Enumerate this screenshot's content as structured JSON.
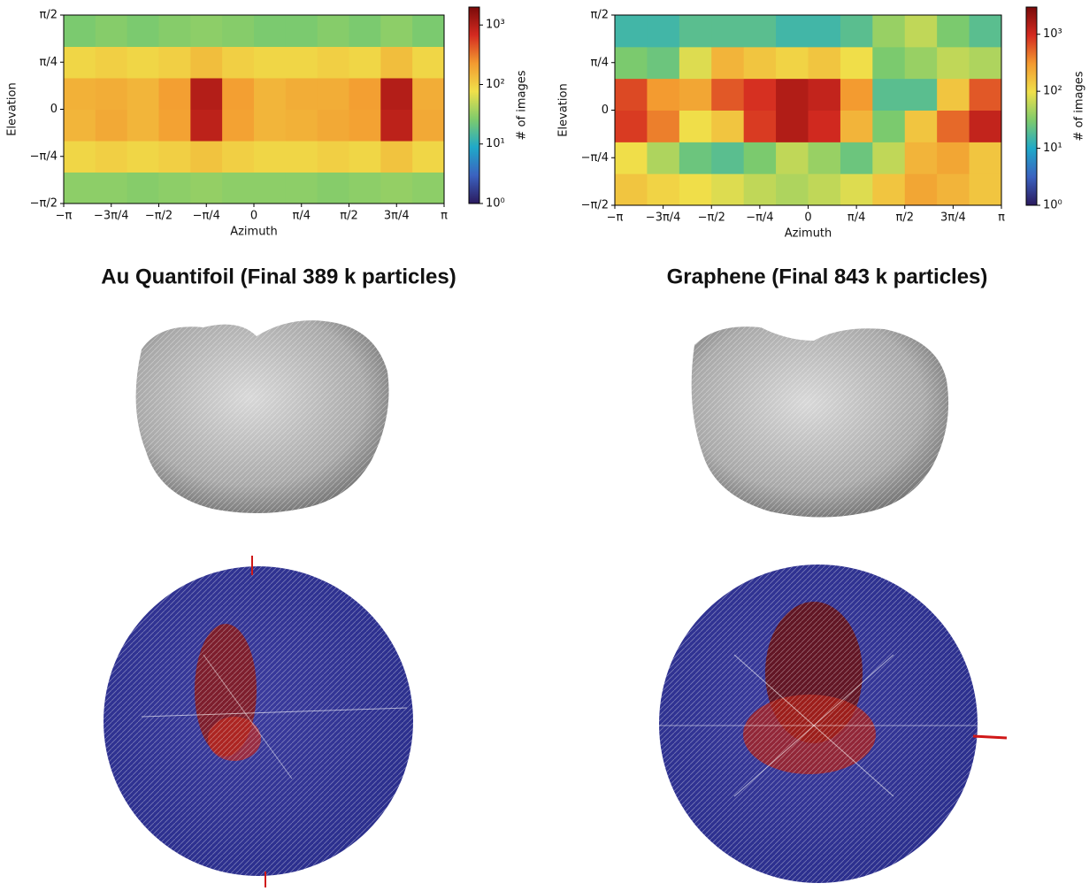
{
  "chart_data": [
    {
      "type": "heatmap",
      "xlabel": "Azimuth",
      "ylabel": "Elevation",
      "colorbar_label": "# of images",
      "xlim": [
        -3.1416,
        3.1416
      ],
      "ylim": [
        -1.5708,
        1.5708
      ],
      "xticks": [
        {
          "value": -3.1416,
          "label": "−π"
        },
        {
          "value": -2.3562,
          "label": "−3π/4"
        },
        {
          "value": -1.5708,
          "label": "−π/2"
        },
        {
          "value": -0.7854,
          "label": "−π/4"
        },
        0,
        {
          "value": 0.7854,
          "label": "π/4"
        },
        {
          "value": 1.5708,
          "label": "π/2"
        },
        {
          "value": 2.3562,
          "label": "3π/4"
        },
        {
          "value": 3.1416,
          "label": "π"
        }
      ],
      "yticks": [
        {
          "value": -1.5708,
          "label": "−π/2"
        },
        {
          "value": -0.7854,
          "label": "−π/4"
        },
        0,
        {
          "value": 0.7854,
          "label": "π/4"
        },
        {
          "value": 1.5708,
          "label": "π/2"
        }
      ],
      "xbins": [
        -3.142,
        -2.618,
        -2.094,
        -1.571,
        -1.047,
        -0.524,
        0,
        0.524,
        1.047,
        1.571,
        2.094,
        2.618,
        3.142
      ],
      "ybins": [
        -1.571,
        -1.047,
        -0.524,
        0,
        0.524,
        1.047,
        1.571
      ],
      "values": [
        [
          30,
          30,
          28,
          30,
          32,
          30,
          30,
          30,
          28,
          30,
          32,
          30
        ],
        [
          90,
          100,
          90,
          100,
          120,
          100,
          90,
          90,
          100,
          90,
          120,
          90
        ],
        [
          150,
          180,
          150,
          200,
          900,
          200,
          150,
          160,
          180,
          200,
          900,
          180
        ],
        [
          160,
          170,
          150,
          210,
          1000,
          210,
          150,
          170,
          170,
          210,
          1000,
          170
        ],
        [
          90,
          100,
          90,
          100,
          130,
          100,
          90,
          90,
          100,
          90,
          130,
          90
        ],
        [
          25,
          28,
          25,
          28,
          30,
          28,
          25,
          25,
          28,
          25,
          30,
          25
        ]
      ],
      "log_color": true,
      "clim": [
        1,
        2000
      ],
      "cticks": [
        {
          "value": 1,
          "label": "10⁰"
        },
        {
          "value": 10,
          "label": "10¹"
        },
        {
          "value": 100,
          "label": "10²"
        },
        {
          "value": 1000,
          "label": "10³"
        }
      ],
      "colormap": [
        "#2b1a5e",
        "#3b62c0",
        "#1fa9c9",
        "#7ecb6c",
        "#f0e04a",
        "#f39a30",
        "#d42a20",
        "#7a0a0a"
      ]
    },
    {
      "type": "heatmap",
      "xlabel": "Azimuth",
      "ylabel": "Elevation",
      "colorbar_label": "# of images",
      "xlim": [
        -3.1416,
        3.1416
      ],
      "ylim": [
        -1.5708,
        1.5708
      ],
      "xticks": [
        {
          "value": -3.1416,
          "label": "−π"
        },
        {
          "value": -2.3562,
          "label": "−3π/4"
        },
        {
          "value": -1.5708,
          "label": "−π/2"
        },
        {
          "value": -0.7854,
          "label": "−π/4"
        },
        0,
        {
          "value": 0.7854,
          "label": "π/4"
        },
        {
          "value": 1.5708,
          "label": "π/2"
        },
        {
          "value": 2.3562,
          "label": "3π/4"
        },
        {
          "value": 3.1416,
          "label": "π"
        }
      ],
      "yticks": [
        {
          "value": -1.5708,
          "label": "−π/2"
        },
        {
          "value": -0.7854,
          "label": "−π/4"
        },
        0,
        {
          "value": 0.7854,
          "label": "π/4"
        },
        {
          "value": 1.5708,
          "label": "π/2"
        }
      ],
      "xbins": [
        -3.142,
        -2.618,
        -2.094,
        -1.571,
        -1.047,
        -0.524,
        0,
        0.524,
        1.047,
        1.571,
        2.094,
        2.618,
        3.142
      ],
      "ybins": [
        -1.571,
        -1.047,
        -0.524,
        0,
        0.524,
        1.047,
        1.571
      ],
      "values": [
        [
          150,
          120,
          100,
          80,
          60,
          50,
          60,
          80,
          150,
          250,
          200,
          150
        ],
        [
          100,
          50,
          25,
          20,
          30,
          60,
          40,
          25,
          60,
          200,
          250,
          150
        ],
        [
          800,
          400,
          100,
          150,
          800,
          1500,
          1000,
          200,
          30,
          150,
          500,
          1200
        ],
        [
          700,
          300,
          250,
          600,
          900,
          1500,
          1200,
          300,
          20,
          20,
          150,
          600
        ],
        [
          30,
          25,
          80,
          200,
          150,
          120,
          150,
          100,
          30,
          40,
          60,
          50
        ],
        [
          15,
          15,
          20,
          20,
          20,
          15,
          15,
          20,
          40,
          60,
          30,
          20
        ]
      ],
      "log_color": true,
      "clim": [
        1,
        3000
      ],
      "cticks": [
        {
          "value": 1,
          "label": "10⁰"
        },
        {
          "value": 10,
          "label": "10¹"
        },
        {
          "value": 100,
          "label": "10²"
        },
        {
          "value": 1000,
          "label": "10³"
        }
      ],
      "colormap": [
        "#2b1a5e",
        "#3b62c0",
        "#1fa9c9",
        "#7ecb6c",
        "#f0e04a",
        "#f39a30",
        "#d42a20",
        "#7a0a0a"
      ]
    }
  ],
  "panels": [
    {
      "title": "Au Quantifoil (Final 389 k particles)"
    },
    {
      "title": "Graphene (Final 843 k particles)"
    }
  ]
}
